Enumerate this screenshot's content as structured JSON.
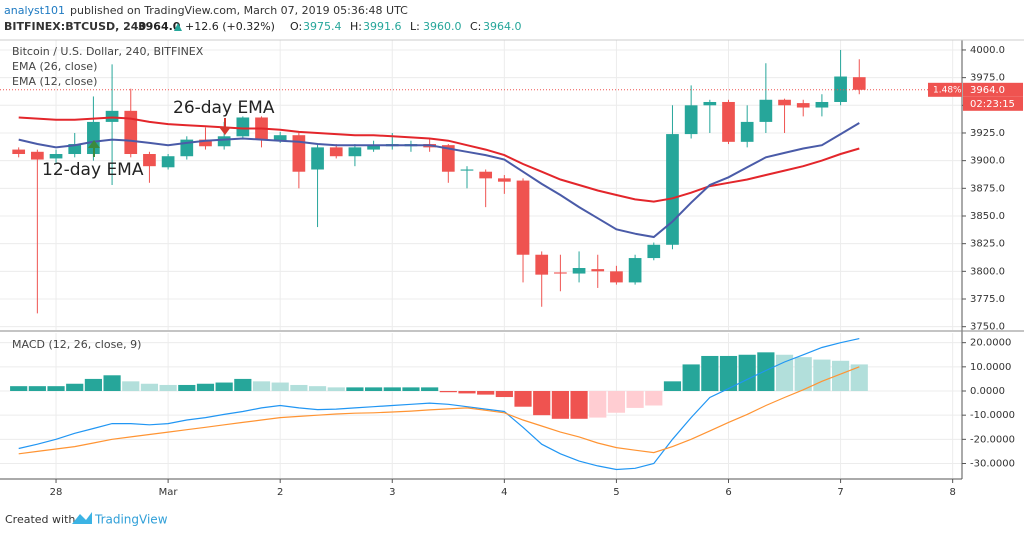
{
  "header": {
    "author": "analyst101",
    "published": "published on TradingView.com, March 07, 2019 05:36:48 UTC",
    "symbol": "BITFINEX:BTCUSD, 240",
    "last": "3964.0",
    "change": "+12.6 (+0.32%)",
    "ohlc": [
      {
        "label": "O:",
        "value": "3975.4"
      },
      {
        "label": "H:",
        "value": "3991.6"
      },
      {
        "label": "L:",
        "value": "3960.0"
      },
      {
        "label": "C:",
        "value": "3964.0"
      }
    ]
  },
  "footer": {
    "created": "Created with",
    "brand": "TradingView"
  },
  "chart_data": [
    {
      "type": "candlestick",
      "title": "Bitcoin / U.S. Dollar, 240, BITFINEX",
      "up_color": "#26a69a",
      "down_color": "#ef5350",
      "open": [
        3910,
        3908,
        3902,
        3906,
        3906,
        3935,
        3945,
        3906,
        3894,
        3904,
        3919,
        3913,
        3922,
        3939,
        3918,
        3923,
        3892,
        3912,
        3904,
        3910,
        3913,
        3913,
        3915,
        3914,
        3891,
        3890,
        3884,
        3882,
        3815,
        3799,
        3798,
        3802,
        3800,
        3790,
        3812,
        3824,
        3924,
        3950,
        3953,
        3917,
        3935,
        3955,
        3952,
        3948,
        3953,
        3975.4
      ],
      "high": [
        3912,
        3910,
        3910,
        3925,
        3958,
        3987,
        3965,
        3908,
        3906,
        3922,
        3930,
        3935,
        3940,
        3940,
        3926,
        3925,
        3915,
        3915,
        3915,
        3918,
        3925,
        3918,
        3920,
        3915,
        3895,
        3892,
        3887,
        3884,
        3818,
        3815,
        3818,
        3815,
        3805,
        3815,
        3826,
        3950,
        3968,
        3955,
        3955,
        3950,
        3988,
        3956,
        3955,
        3960,
        4000,
        3991.6
      ],
      "low": [
        3903,
        3762,
        3898,
        3903,
        3900,
        3878,
        3903,
        3880,
        3892,
        3901,
        3910,
        3910,
        3920,
        3912,
        3916,
        3875,
        3840,
        3902,
        3895,
        3908,
        3910,
        3908,
        3908,
        3880,
        3875,
        3858,
        3870,
        3790,
        3768,
        3782,
        3790,
        3785,
        3788,
        3788,
        3810,
        3820,
        3920,
        3925,
        3915,
        3912,
        3925,
        3925,
        3940,
        3940,
        3950,
        3960
      ],
      "close": [
        3906,
        3901,
        3906,
        3915,
        3935,
        3945,
        3906,
        3895,
        3904,
        3919,
        3913,
        3922,
        3939,
        3919,
        3923,
        3890,
        3912,
        3904,
        3912,
        3914,
        3915,
        3915,
        3912,
        3890,
        3892,
        3884,
        3881,
        3815,
        3797,
        3798,
        3803,
        3800,
        3790,
        3812,
        3824,
        3924,
        3950,
        3953,
        3917,
        3935,
        3955,
        3950,
        3948,
        3953,
        3976,
        3964
      ],
      "series": [
        {
          "name": "EMA (26, close)",
          "color": "#e3262b",
          "values": [
            3939,
            3938,
            3937,
            3937,
            3938,
            3939,
            3938,
            3935,
            3933,
            3932,
            3931,
            3930,
            3929,
            3929,
            3928,
            3926,
            3925,
            3924,
            3923,
            3923,
            3922,
            3921,
            3920,
            3918,
            3914,
            3910,
            3905,
            3897,
            3890,
            3883,
            3878,
            3873,
            3869,
            3865,
            3863,
            3866,
            3871,
            3877,
            3880,
            3883,
            3887,
            3891,
            3895,
            3900,
            3906,
            3911
          ]
        },
        {
          "name": "EMA (12, close)",
          "color": "#4a5ba8",
          "values": [
            3919,
            3915,
            3912,
            3914,
            3917,
            3919,
            3918,
            3916,
            3914,
            3916,
            3918,
            3919,
            3920,
            3919,
            3918,
            3917,
            3915,
            3914,
            3914,
            3914,
            3914,
            3914,
            3914,
            3911,
            3908,
            3905,
            3901,
            3890,
            3879,
            3869,
            3858,
            3848,
            3838,
            3834,
            3831,
            3845,
            3862,
            3878,
            3885,
            3894,
            3903,
            3907,
            3911,
            3914,
            3924,
            3934
          ]
        }
      ],
      "annotations": [
        "26-day EMA",
        "12-day EMA"
      ],
      "last_price": {
        "value": 3964.0,
        "label": "3964.0"
      },
      "change_label": "1.48%",
      "countdown": "02:23:15",
      "xlim": [
        -1,
        50.5
      ],
      "ylim": [
        3747,
        4009
      ],
      "yticks": [
        {
          "value": 4000,
          "label": "4000.0"
        },
        {
          "value": 3975,
          "label": "3975.0"
        },
        {
          "value": 3950,
          "label": "3950.0"
        },
        {
          "value": 3925,
          "label": "3925.0"
        },
        {
          "value": 3900,
          "label": "3900.0"
        },
        {
          "value": 3875,
          "label": "3875.0"
        },
        {
          "value": 3850,
          "label": "3850.0"
        },
        {
          "value": 3825,
          "label": "3825.0"
        },
        {
          "value": 3800,
          "label": "3800.0"
        },
        {
          "value": 3775,
          "label": "3775.0"
        },
        {
          "value": 3750,
          "label": "3750.0"
        }
      ],
      "grid": true
    },
    {
      "type": "macd",
      "title": "MACD (12, 26, close, 9)",
      "histogram": [
        2,
        2,
        2,
        3,
        5,
        6.5,
        4,
        3,
        2.5,
        2.5,
        3,
        3.5,
        5,
        4,
        3.5,
        2.5,
        2,
        1.5,
        1.5,
        1.5,
        1.5,
        1.5,
        1.5,
        -0.5,
        -1,
        -1.5,
        -2.5,
        -6.5,
        -10,
        -11.5,
        -11.5,
        -11,
        -9,
        -7,
        -6,
        4,
        11,
        14.5,
        14.5,
        15,
        16,
        15,
        14,
        13,
        12.5,
        11
      ],
      "histogram_colors": {
        "rise_pos": "#26a69a",
        "fall_pos": "#b2dfdb",
        "fall_neg": "#ef5350",
        "rise_neg": "#ffcdd2"
      },
      "lines": [
        {
          "color": "#2196f3",
          "values": [
            -23.8,
            -22,
            -20,
            -17.5,
            -15.5,
            -13.5,
            -13.5,
            -14,
            -13.5,
            -12,
            -11,
            -9.7,
            -8.5,
            -7,
            -6,
            -7,
            -7.7,
            -7.5,
            -7,
            -6.5,
            -6,
            -5.5,
            -5,
            -5.5,
            -6.5,
            -7.5,
            -8.5,
            -15,
            -22,
            -26,
            -29,
            -31,
            -32.5,
            -32,
            -30,
            -20,
            -11,
            -2.7,
            1,
            4.8,
            8.5,
            12,
            15,
            18,
            20,
            21.7
          ]
        },
        {
          "color": "#ff9433",
          "values": [
            -26,
            -25,
            -24,
            -23,
            -21.5,
            -20,
            -19,
            -18,
            -17,
            -16,
            -15,
            -14,
            -13,
            -12,
            -11,
            -10.5,
            -10,
            -9.5,
            -9.2,
            -9,
            -8.7,
            -8.3,
            -7.8,
            -7.4,
            -7,
            -8,
            -9,
            -12,
            -14.5,
            -17,
            -19,
            -21.5,
            -23.4,
            -24.5,
            -25.5,
            -23,
            -20,
            -16.5,
            -13,
            -9.7,
            -6,
            -2.7,
            0.5,
            4,
            7,
            10
          ]
        }
      ],
      "xlim": [
        -1,
        50.5
      ],
      "xticks": [
        {
          "value": 2,
          "label": "28"
        },
        {
          "value": 8,
          "label": "Mar"
        },
        {
          "value": 14,
          "label": "2"
        },
        {
          "value": 20,
          "label": "3"
        },
        {
          "value": 26,
          "label": "4"
        },
        {
          "value": 32,
          "label": "5"
        },
        {
          "value": 38,
          "label": "6"
        },
        {
          "value": 44,
          "label": "7"
        },
        {
          "value": 50,
          "label": "8"
        }
      ],
      "ylim": [
        -36,
        24
      ],
      "yticks": [
        {
          "value": 20,
          "label": "20.0000"
        },
        {
          "value": 10,
          "label": "10.0000"
        },
        {
          "value": 0,
          "label": "0.0000"
        },
        {
          "value": -10,
          "label": "-10.0000"
        },
        {
          "value": -20,
          "label": "-20.0000"
        },
        {
          "value": -30,
          "label": "-30.0000"
        }
      ],
      "grid": true
    }
  ]
}
